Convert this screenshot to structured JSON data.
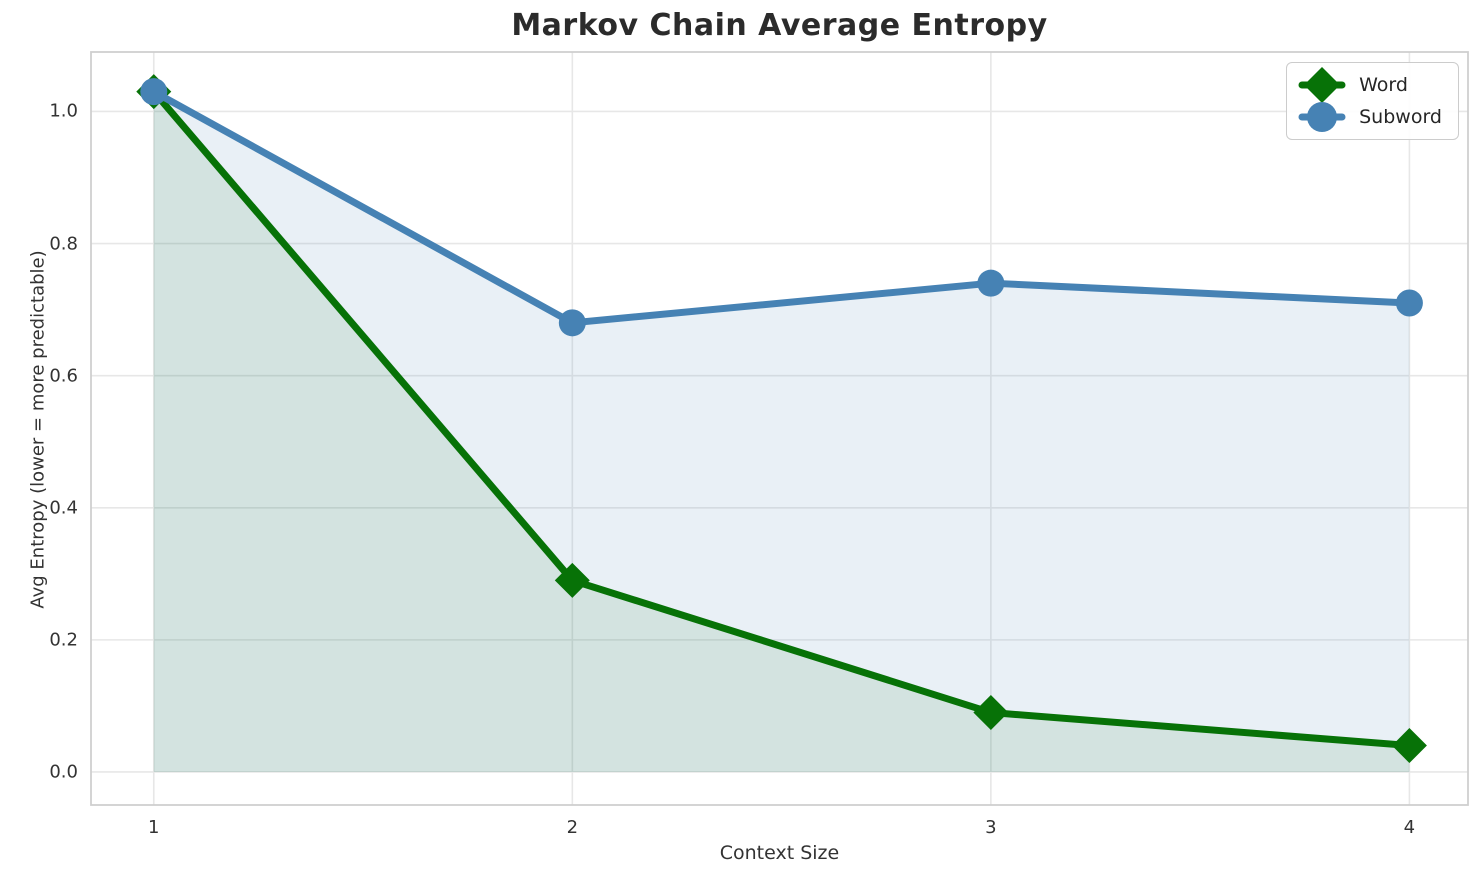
{
  "title": "Markov Chain Average Entropy",
  "colors": {
    "word": "#077207",
    "subword": "#4682b4",
    "grid": "#e7e7e7",
    "frame": "#cfcfcf",
    "tick_text": "#333333",
    "title_text": "#2b2b2b",
    "background": "#ffffff"
  },
  "chart_data": {
    "type": "line",
    "title": "Markov Chain Average Entropy",
    "xlabel": "Context Size",
    "ylabel": "Avg Entropy (lower = more predictable)",
    "x": [
      1,
      2,
      3,
      4
    ],
    "series": [
      {
        "name": "Word",
        "values": [
          1.03,
          0.29,
          0.09,
          0.04
        ],
        "color": "#077207",
        "marker": "diamond",
        "fill_alpha": 0.1
      },
      {
        "name": "Subword",
        "values": [
          1.03,
          0.68,
          0.74,
          0.71
        ],
        "color": "#4682b4",
        "marker": "circle",
        "fill_alpha": 0.12
      }
    ],
    "xticks": [
      "1",
      "2",
      "3",
      "4"
    ],
    "yticks": [
      "0.0",
      "0.2",
      "0.4",
      "0.6",
      "0.8",
      "1.0"
    ],
    "xlim": [
      0.85,
      4.14
    ],
    "ylim": [
      -0.05,
      1.09
    ],
    "grid": true,
    "legend_position": "upper right",
    "legend": [
      "Word",
      "Subword"
    ]
  }
}
